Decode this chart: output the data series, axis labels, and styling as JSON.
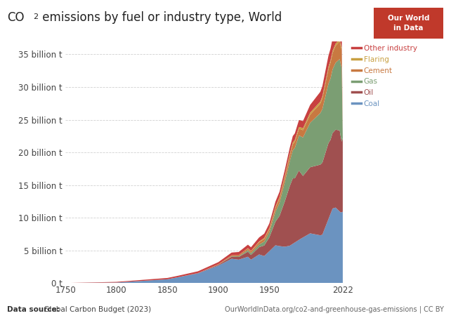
{
  "title": "CO₂ emissions by fuel or industry type, World",
  "x_start": 1750,
  "x_end": 2022,
  "ylim_max": 37000000000.0,
  "yticks": [
    0,
    5000000000.0,
    10000000000.0,
    15000000000.0,
    20000000000.0,
    25000000000.0,
    30000000000.0,
    35000000000.0
  ],
  "ytick_labels": [
    "0 t",
    "5 billion t",
    "10 billion t",
    "15 billion t",
    "20 billion t",
    "25 billion t",
    "30 billion t",
    "35 billion t"
  ],
  "xticks": [
    1750,
    1800,
    1850,
    1900,
    1950,
    2022
  ],
  "colors": {
    "Coal": "#6b93c0",
    "Oil": "#a05050",
    "Gas": "#7b9e73",
    "Cement": "#c87941",
    "Flaring": "#c8a041",
    "Other industry": "#c84040"
  },
  "legend_labels": [
    "Other industry",
    "Flaring",
    "Cement",
    "Gas",
    "Oil",
    "Coal"
  ],
  "data_source_bold": "Data source:",
  "data_source_rest": " Global Carbon Budget (2023)",
  "url": "OurWorldInData.org/co2-and-greenhouse-gas-emissions | CC BY",
  "logo_text": "Our World\nin Data",
  "logo_color": "#c0392b",
  "background_color": "#ffffff",
  "grid_color": "#cccccc"
}
